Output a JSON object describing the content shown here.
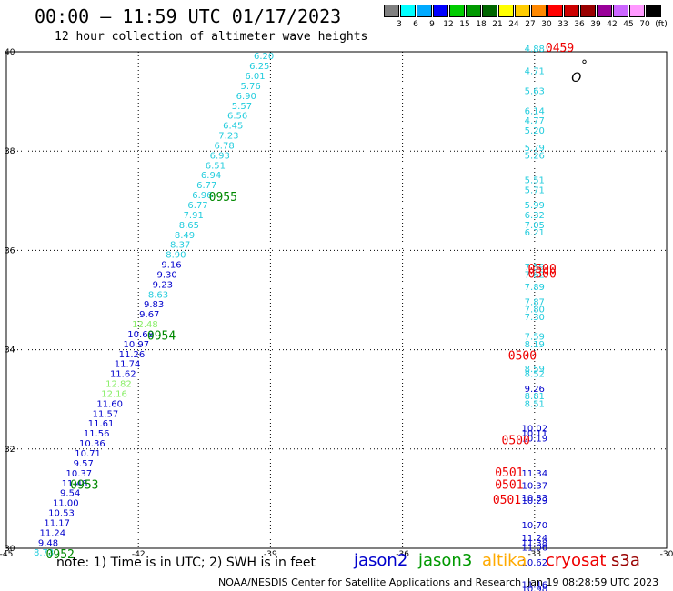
{
  "header": {
    "title": "00:00 — 11:59 UTC 01/17/2023",
    "subtitle": "12 hour collection of altimeter wave heights"
  },
  "legend": {
    "colors": [
      "#808080",
      "#00ffff",
      "#00aaff",
      "#0000ff",
      "#00cc00",
      "#009900",
      "#006600",
      "#ffff00",
      "#ffcc00",
      "#ff8800",
      "#ff0000",
      "#cc0000",
      "#990000",
      "#990099",
      "#cc66ff",
      "#ff99ff",
      "#000000"
    ],
    "labels": [
      "3",
      "6",
      "9",
      "12",
      "15",
      "18",
      "21",
      "24",
      "27",
      "30",
      "33",
      "36",
      "39",
      "42",
      "45",
      "70",
      "(ft)"
    ]
  },
  "footer": {
    "note": "note: 1) Time is in UTC; 2) SWH is in feet",
    "satellites": [
      {
        "name": "jason2",
        "color": "#0000cc"
      },
      {
        "name": "jason3",
        "color": "#009900"
      },
      {
        "name": "altika",
        "color": "#ffaa00"
      },
      {
        "name": "cryosat",
        "color": "#ee0000"
      },
      {
        "name": "s3a",
        "color": "#990000"
      }
    ],
    "credit": "NOAA/NESDIS Center for Satellite Applications and Research",
    "timestamp": "Jan 19 08:28:59 UTC 2023"
  },
  "chart_data": {
    "type": "scatter",
    "xlim": [
      -45,
      -30
    ],
    "ylim": [
      30,
      40
    ],
    "xticks": [
      "-45",
      "-42",
      "-39",
      "-36",
      "-33",
      "-30"
    ],
    "yticks": [
      "30",
      "32",
      "34",
      "36",
      "38",
      "40"
    ],
    "xtick_values": [
      -45,
      -42,
      -39,
      -36,
      -33,
      -30
    ],
    "ytick_values": [
      30,
      32,
      34,
      36,
      38,
      40
    ],
    "grid": true,
    "points": [
      {
        "x": -39.15,
        "y": 39.85,
        "label": "6.20",
        "color": "#22ccdd"
      },
      {
        "x": -39.25,
        "y": 39.65,
        "label": "6.25",
        "color": "#22ccdd"
      },
      {
        "x": -39.35,
        "y": 39.45,
        "label": "6.01",
        "color": "#22ccdd"
      },
      {
        "x": -39.45,
        "y": 39.25,
        "label": "5.76",
        "color": "#22ccdd"
      },
      {
        "x": -39.55,
        "y": 39.05,
        "label": "6.90",
        "color": "#22ccdd"
      },
      {
        "x": -39.65,
        "y": 38.85,
        "label": "5.57",
        "color": "#22ccdd"
      },
      {
        "x": -39.75,
        "y": 38.65,
        "label": "6.56",
        "color": "#22ccdd"
      },
      {
        "x": -39.85,
        "y": 38.45,
        "label": "6.45",
        "color": "#22ccdd"
      },
      {
        "x": -39.95,
        "y": 38.25,
        "label": "7.23",
        "color": "#22ccdd"
      },
      {
        "x": -40.05,
        "y": 38.05,
        "label": "6.78",
        "color": "#22ccdd"
      },
      {
        "x": -40.15,
        "y": 37.85,
        "label": "6.93",
        "color": "#22ccdd"
      },
      {
        "x": -40.25,
        "y": 37.65,
        "label": "6.51",
        "color": "#22ccdd"
      },
      {
        "x": -40.35,
        "y": 37.45,
        "label": "6.94",
        "color": "#22ccdd"
      },
      {
        "x": -40.45,
        "y": 37.25,
        "label": "6.77",
        "color": "#22ccdd"
      },
      {
        "x": -40.55,
        "y": 37.05,
        "label": "6.96",
        "color": "#22ccdd"
      },
      {
        "x": -40.65,
        "y": 36.85,
        "label": "6.77",
        "color": "#22ccdd"
      },
      {
        "x": -40.75,
        "y": 36.65,
        "label": "7.91",
        "color": "#22ccdd"
      },
      {
        "x": -40.85,
        "y": 36.45,
        "label": "8.65",
        "color": "#22ccdd"
      },
      {
        "x": -40.95,
        "y": 36.25,
        "label": "8.49",
        "color": "#22ccdd"
      },
      {
        "x": -41.05,
        "y": 36.05,
        "label": "8.37",
        "color": "#22ccdd"
      },
      {
        "x": -41.15,
        "y": 35.85,
        "label": "8.90",
        "color": "#22ccdd"
      },
      {
        "x": -41.25,
        "y": 35.65,
        "label": "9.16",
        "color": "#0000cc"
      },
      {
        "x": -41.35,
        "y": 35.45,
        "label": "9.30",
        "color": "#0000cc"
      },
      {
        "x": -41.45,
        "y": 35.25,
        "label": "9.23",
        "color": "#0000cc"
      },
      {
        "x": -41.55,
        "y": 35.05,
        "label": "8.63",
        "color": "#22ccdd"
      },
      {
        "x": -41.65,
        "y": 34.85,
        "label": "9.83",
        "color": "#0000cc"
      },
      {
        "x": -41.75,
        "y": 34.65,
        "label": "9.67",
        "color": "#0000cc"
      },
      {
        "x": -41.85,
        "y": 34.45,
        "label": "12.48",
        "color": "#88ee66"
      },
      {
        "x": -41.95,
        "y": 34.25,
        "label": "10.68",
        "color": "#0000cc"
      },
      {
        "x": -42.05,
        "y": 34.05,
        "label": "10.97",
        "color": "#0000cc"
      },
      {
        "x": -42.15,
        "y": 33.85,
        "label": "11.26",
        "color": "#0000cc"
      },
      {
        "x": -42.25,
        "y": 33.65,
        "label": "11.74",
        "color": "#0000cc"
      },
      {
        "x": -42.35,
        "y": 33.45,
        "label": "11.62",
        "color": "#0000cc"
      },
      {
        "x": -42.45,
        "y": 33.25,
        "label": "12.82",
        "color": "#88ee66"
      },
      {
        "x": -42.55,
        "y": 33.05,
        "label": "12.16",
        "color": "#88ee66"
      },
      {
        "x": -42.65,
        "y": 32.85,
        "label": "11.60",
        "color": "#0000cc"
      },
      {
        "x": -42.75,
        "y": 32.65,
        "label": "11.57",
        "color": "#0000cc"
      },
      {
        "x": -42.85,
        "y": 32.45,
        "label": "11.61",
        "color": "#0000cc"
      },
      {
        "x": -42.95,
        "y": 32.25,
        "label": "11.56",
        "color": "#0000cc"
      },
      {
        "x": -43.05,
        "y": 32.05,
        "label": "10.36",
        "color": "#0000cc"
      },
      {
        "x": -43.15,
        "y": 31.85,
        "label": "10.71",
        "color": "#0000cc"
      },
      {
        "x": -43.25,
        "y": 31.65,
        "label": "9.57",
        "color": "#0000cc"
      },
      {
        "x": -43.35,
        "y": 31.45,
        "label": "10.37",
        "color": "#0000cc"
      },
      {
        "x": -43.45,
        "y": 31.25,
        "label": "11.48",
        "color": "#0000cc"
      },
      {
        "x": -43.55,
        "y": 31.05,
        "label": "9.54",
        "color": "#0000cc"
      },
      {
        "x": -43.65,
        "y": 30.85,
        "label": "11.00",
        "color": "#0000cc"
      },
      {
        "x": -43.75,
        "y": 30.65,
        "label": "10.53",
        "color": "#0000cc"
      },
      {
        "x": -43.85,
        "y": 30.45,
        "label": "11.17",
        "color": "#0000cc"
      },
      {
        "x": -43.95,
        "y": 30.25,
        "label": "11.24",
        "color": "#0000cc"
      },
      {
        "x": -44.05,
        "y": 30.05,
        "label": "9.48",
        "color": "#0000cc"
      },
      {
        "x": -44.15,
        "y": 29.85,
        "label": "8.73",
        "color": "#22ccdd"
      },
      {
        "x": -33.0,
        "y": 40.0,
        "label": "4.88",
        "color": "#22ccdd"
      },
      {
        "x": -33.0,
        "y": 39.55,
        "label": "4.71",
        "color": "#22ccdd"
      },
      {
        "x": -33.0,
        "y": 39.15,
        "label": "5.63",
        "color": "#22ccdd"
      },
      {
        "x": -33.0,
        "y": 38.75,
        "label": "6.14",
        "color": "#22ccdd"
      },
      {
        "x": -33.0,
        "y": 38.55,
        "label": "4.77",
        "color": "#22ccdd"
      },
      {
        "x": -33.0,
        "y": 38.35,
        "label": "5.20",
        "color": "#22ccdd"
      },
      {
        "x": -33.0,
        "y": 38.0,
        "label": "5.79",
        "color": "#22ccdd"
      },
      {
        "x": -33.0,
        "y": 37.85,
        "label": "5.26",
        "color": "#22ccdd"
      },
      {
        "x": -33.0,
        "y": 37.35,
        "label": "5.51",
        "color": "#22ccdd"
      },
      {
        "x": -33.0,
        "y": 37.15,
        "label": "5.71",
        "color": "#22ccdd"
      },
      {
        "x": -33.0,
        "y": 36.85,
        "label": "5.99",
        "color": "#22ccdd"
      },
      {
        "x": -33.0,
        "y": 36.65,
        "label": "6.32",
        "color": "#22ccdd"
      },
      {
        "x": -33.0,
        "y": 36.45,
        "label": "7.05",
        "color": "#22ccdd"
      },
      {
        "x": -33.0,
        "y": 36.3,
        "label": "6.21",
        "color": "#22ccdd"
      },
      {
        "x": -33.0,
        "y": 35.6,
        "label": "7.59",
        "color": "#22ccdd"
      },
      {
        "x": -33.0,
        "y": 35.45,
        "label": "7.62",
        "color": "#22ccdd"
      },
      {
        "x": -33.0,
        "y": 35.2,
        "label": "7.89",
        "color": "#22ccdd"
      },
      {
        "x": -33.0,
        "y": 34.9,
        "label": "7.87",
        "color": "#22ccdd"
      },
      {
        "x": -33.0,
        "y": 34.75,
        "label": "7.80",
        "color": "#22ccdd"
      },
      {
        "x": -33.0,
        "y": 34.6,
        "label": "7.30",
        "color": "#22ccdd"
      },
      {
        "x": -33.0,
        "y": 34.2,
        "label": "7.59",
        "color": "#22ccdd"
      },
      {
        "x": -33.0,
        "y": 34.05,
        "label": "8.19",
        "color": "#22ccdd"
      },
      {
        "x": -33.0,
        "y": 33.55,
        "label": "8.59",
        "color": "#22ccdd"
      },
      {
        "x": -33.0,
        "y": 33.45,
        "label": "8.52",
        "color": "#22ccdd"
      },
      {
        "x": -33.0,
        "y": 33.15,
        "label": "9.26",
        "color": "#0000cc"
      },
      {
        "x": -33.0,
        "y": 33.0,
        "label": "8.81",
        "color": "#22ccdd"
      },
      {
        "x": -33.0,
        "y": 32.85,
        "label": "8.51",
        "color": "#22ccdd"
      },
      {
        "x": -33.0,
        "y": 32.35,
        "label": "10.02",
        "color": "#0000cc"
      },
      {
        "x": -33.0,
        "y": 32.25,
        "label": "10.11",
        "color": "#0000cc"
      },
      {
        "x": -33.0,
        "y": 32.15,
        "label": "10.19",
        "color": "#0000cc"
      },
      {
        "x": -33.0,
        "y": 31.45,
        "label": "11.34",
        "color": "#0000cc"
      },
      {
        "x": -33.0,
        "y": 31.2,
        "label": "10.37",
        "color": "#0000cc"
      },
      {
        "x": -33.0,
        "y": 30.95,
        "label": "10.83",
        "color": "#0000cc"
      },
      {
        "x": -33.0,
        "y": 30.9,
        "label": "10.29",
        "color": "#0000cc"
      },
      {
        "x": -33.0,
        "y": 30.4,
        "label": "10.70",
        "color": "#0000cc"
      },
      {
        "x": -33.0,
        "y": 30.15,
        "label": "11.24",
        "color": "#0000cc"
      },
      {
        "x": -33.0,
        "y": 30.05,
        "label": "11.38",
        "color": "#0000cc"
      },
      {
        "x": -33.0,
        "y": 29.95,
        "label": "11.06",
        "color": "#0000cc"
      },
      {
        "x": -33.0,
        "y": 29.65,
        "label": "10.62",
        "color": "#0000cc"
      },
      {
        "x": -33.0,
        "y": 29.2,
        "label": "11.16",
        "color": "#0000cc"
      },
      {
        "x": -33.0,
        "y": 29.12,
        "label": "10.98",
        "color": "#0000cc"
      }
    ],
    "time_labels": [
      {
        "x": -40.4,
        "y": 37.0,
        "label": "0955",
        "color": "#008800"
      },
      {
        "x": -41.8,
        "y": 34.2,
        "label": "0954",
        "color": "#008800"
      },
      {
        "x": -43.55,
        "y": 31.2,
        "label": "0953",
        "color": "#008800"
      },
      {
        "x": -44.1,
        "y": 29.8,
        "label": "0952",
        "color": "#008800"
      },
      {
        "x": -32.75,
        "y": 40.0,
        "label": "0459",
        "color": "#ee0000"
      },
      {
        "x": -33.15,
        "y": 35.55,
        "label": "0500",
        "color": "#ee0000"
      },
      {
        "x": -33.15,
        "y": 35.45,
        "label": "0500",
        "color": "#ee0000"
      },
      {
        "x": -33.6,
        "y": 33.8,
        "label": "0500",
        "color": "#ee0000"
      },
      {
        "x": -33.75,
        "y": 32.1,
        "label": "0500",
        "color": "#ee0000"
      },
      {
        "x": -33.9,
        "y": 31.45,
        "label": "0501",
        "color": "#ee0000"
      },
      {
        "x": -33.9,
        "y": 31.2,
        "label": "0501",
        "color": "#ee0000"
      },
      {
        "x": -33.95,
        "y": 30.9,
        "label": "0501",
        "color": "#ee0000"
      }
    ],
    "markers": [
      {
        "x": -31.87,
        "y": 39.65,
        "label": "°",
        "color": "#000000"
      },
      {
        "x": -32.05,
        "y": 39.4,
        "label": "O",
        "color": "#000000"
      }
    ]
  }
}
